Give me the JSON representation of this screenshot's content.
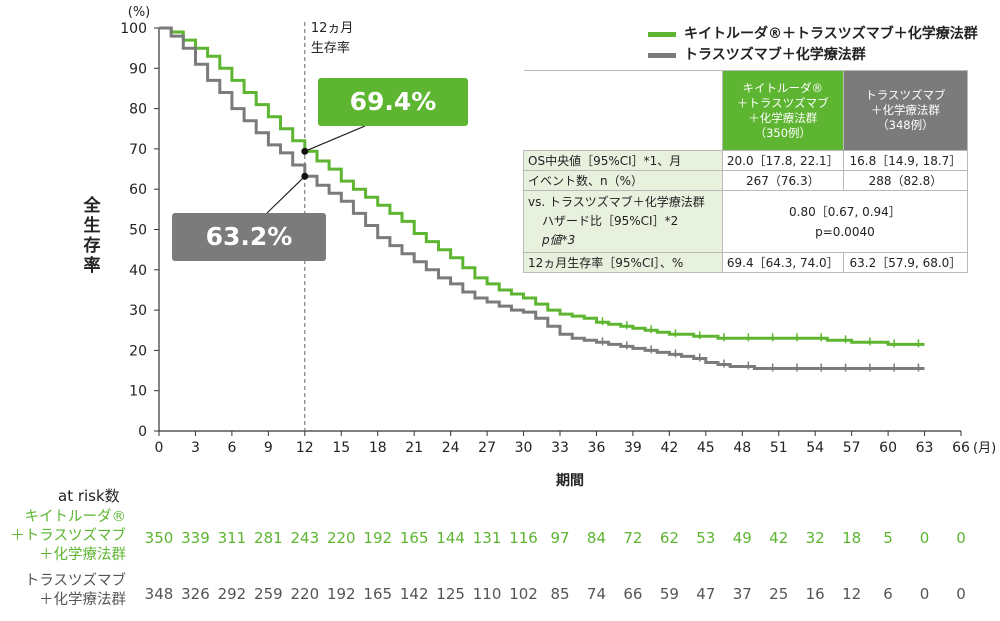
{
  "colors": {
    "keytruda": "#5db531",
    "control": "#7b7b7b",
    "table_row_header": "#e7f1de"
  },
  "chart_data": {
    "type": "line",
    "xlabel": "期間",
    "x_unit": "(月)",
    "ylabel": "全生存率",
    "y_unit": "(%)",
    "xlim": [
      0,
      66
    ],
    "ylim": [
      0,
      100
    ],
    "xticks": [
      0,
      3,
      6,
      9,
      12,
      15,
      18,
      21,
      24,
      27,
      30,
      33,
      36,
      39,
      42,
      45,
      48,
      51,
      54,
      57,
      60,
      63,
      66
    ],
    "yticks": [
      0,
      10,
      20,
      30,
      40,
      50,
      60,
      70,
      80,
      90,
      100
    ],
    "reference_line": {
      "x": 12,
      "label": "12ヵ月\n生存率"
    },
    "series": [
      {
        "name": "キイトルーダ®＋トラスツズマブ＋化学療法群",
        "x": [
          0,
          1,
          2,
          3,
          4,
          5,
          6,
          7,
          8,
          9,
          10,
          11,
          12,
          13,
          14,
          15,
          16,
          17,
          18,
          19,
          20,
          21,
          22,
          23,
          24,
          25,
          26,
          27,
          28,
          29,
          30,
          31,
          32,
          33,
          34,
          35,
          36,
          37,
          38,
          39,
          40,
          41,
          42,
          43,
          44,
          45,
          46,
          47,
          48,
          49,
          50,
          51,
          52,
          53,
          54,
          55,
          56,
          57,
          58,
          59,
          60,
          61,
          62,
          63
        ],
        "y": [
          100,
          99,
          97,
          95,
          93,
          90,
          87,
          84,
          81,
          78,
          75,
          72,
          69.4,
          67,
          65,
          62,
          60,
          58,
          56,
          54,
          52,
          49,
          47,
          45,
          43,
          40.5,
          38,
          36.5,
          35,
          34,
          33,
          31.5,
          30,
          29,
          28.5,
          28,
          27,
          26.5,
          26,
          25.5,
          25,
          24.5,
          24,
          24,
          23.5,
          23.5,
          23,
          23,
          23,
          23,
          23,
          23,
          23,
          23,
          23,
          22.5,
          22.5,
          22,
          22,
          22,
          21.5,
          21.5,
          21.5,
          21.5
        ]
      },
      {
        "name": "トラスツズマブ＋化学療法群",
        "x": [
          0,
          1,
          2,
          3,
          4,
          5,
          6,
          7,
          8,
          9,
          10,
          11,
          12,
          13,
          14,
          15,
          16,
          17,
          18,
          19,
          20,
          21,
          22,
          23,
          24,
          25,
          26,
          27,
          28,
          29,
          30,
          31,
          32,
          33,
          34,
          35,
          36,
          37,
          38,
          39,
          40,
          41,
          42,
          43,
          44,
          45,
          46,
          47,
          48,
          49,
          50,
          51,
          52,
          53,
          54,
          55,
          56,
          57,
          58,
          59,
          60,
          61,
          62,
          63
        ],
        "y": [
          100,
          98,
          95,
          91,
          87,
          84,
          80,
          77,
          74,
          71,
          69,
          66,
          63.2,
          61,
          59,
          57,
          54,
          51,
          48,
          46,
          44,
          42,
          40,
          38,
          36.5,
          34.5,
          33,
          32,
          31,
          30,
          29.5,
          28,
          26,
          24,
          23,
          22.5,
          22,
          21.5,
          21,
          20.5,
          20,
          19.5,
          19,
          18.5,
          18,
          17,
          16.5,
          16,
          16,
          15.5,
          15.5,
          15.5,
          15.5,
          15.5,
          15.5,
          15.5,
          15.5,
          15.5,
          15.5,
          15.5,
          15.5,
          15.5,
          15.5,
          15.5
        ]
      }
    ],
    "annotations": [
      {
        "x": 12,
        "y": 69.4,
        "text": "69.4%"
      },
      {
        "x": 12,
        "y": 63.2,
        "text": "63.2%"
      }
    ]
  },
  "legend": {
    "keytruda": "キイトルーダ®＋トラスツズマブ＋化学療法群",
    "control": "トラスツズマブ＋化学療法群"
  },
  "table": {
    "col1_header": [
      "キイトルーダ®",
      "＋トラスツズマブ",
      "＋化学療法群",
      "（350例）"
    ],
    "col2_header": [
      "トラスツズマブ",
      "＋化学療法群",
      "（348例）"
    ],
    "rows": [
      {
        "label": "OS中央値［95%CI］*1、月",
        "v1": "20.0［17.8, 22.1］",
        "v2": "16.8［14.9, 18.7］"
      },
      {
        "label": "イベント数、n（%）",
        "v1": "267（76.3）",
        "v2": "288（82.8）"
      },
      {
        "label": "vs. トラスツズマブ＋化学療法群",
        "label2": "ハザード比［95%CI］*2",
        "label3": "p値*3",
        "merged": "0.80［0.67, 0.94］",
        "merged2": "p=0.0040"
      },
      {
        "label": "12ヵ月生存率［95%CI］、%",
        "v1": "69.4［64.3, 74.0］",
        "v2": "63.2［57.9, 68.0］"
      }
    ]
  },
  "risk": {
    "title": "at risk数",
    "keytruda_label": [
      "キイトルーダ®",
      "＋トラスツズマブ",
      "＋化学療法群"
    ],
    "control_label": [
      "トラスツズマブ",
      "＋化学療法群"
    ],
    "keytruda": [
      350,
      339,
      311,
      281,
      243,
      220,
      192,
      165,
      144,
      131,
      116,
      97,
      84,
      72,
      62,
      53,
      49,
      42,
      32,
      18,
      5,
      0,
      0
    ],
    "control": [
      348,
      326,
      292,
      259,
      220,
      192,
      165,
      142,
      125,
      110,
      102,
      85,
      74,
      66,
      59,
      47,
      37,
      25,
      16,
      12,
      6,
      0,
      0
    ]
  }
}
